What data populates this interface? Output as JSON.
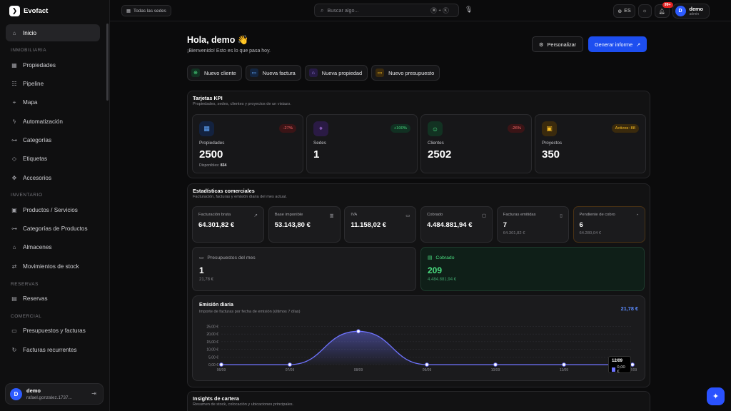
{
  "brand": {
    "name": "Evofact"
  },
  "sidebar": {
    "items": [
      {
        "id": "inicio",
        "label": "Inicio",
        "icon": "home-icon",
        "glyph": "⌂",
        "active": true
      },
      {
        "section": "INMOBILIARIA"
      },
      {
        "id": "propiedades",
        "label": "Propiedades",
        "icon": "building-icon",
        "glyph": "▦"
      },
      {
        "id": "pipeline",
        "label": "Pipeline",
        "icon": "pipeline-icon",
        "glyph": "☷"
      },
      {
        "id": "mapa",
        "label": "Mapa",
        "icon": "map-pin-icon",
        "glyph": "⌖"
      },
      {
        "id": "automatizacion",
        "label": "Automatización",
        "icon": "bolt-icon",
        "glyph": "ϟ"
      },
      {
        "id": "categorias",
        "label": "Categorías",
        "icon": "tree-icon",
        "glyph": "⊶"
      },
      {
        "id": "etiquetas",
        "label": "Etiquetas",
        "icon": "tag-icon",
        "glyph": "◇"
      },
      {
        "id": "accesorios",
        "label": "Accesorios",
        "icon": "puzzle-icon",
        "glyph": "✥"
      },
      {
        "section": "INVENTARIO"
      },
      {
        "id": "productos",
        "label": "Productos / Servicios",
        "icon": "box-icon",
        "glyph": "▣"
      },
      {
        "id": "cat-productos",
        "label": "Categorías de Productos",
        "icon": "tree-icon",
        "glyph": "⊶"
      },
      {
        "id": "almacenes",
        "label": "Almacenes",
        "icon": "warehouse-icon",
        "glyph": "⌂"
      },
      {
        "id": "movimientos",
        "label": "Movimientos de stock",
        "icon": "arrows-icon",
        "glyph": "⇄"
      },
      {
        "section": "RESERVAS"
      },
      {
        "id": "reservas",
        "label": "Reservas",
        "icon": "calendar-icon",
        "glyph": "▤"
      },
      {
        "section": "COMERCIAL"
      },
      {
        "id": "presupuestos",
        "label": "Presupuestos y facturas",
        "icon": "document-icon",
        "glyph": "▭"
      },
      {
        "id": "recurrentes",
        "label": "Facturas recurrentes",
        "icon": "repeat-icon",
        "glyph": "↻"
      }
    ],
    "user": {
      "initial": "D",
      "name": "demo",
      "email": "rafael.gonzalez.1737..."
    }
  },
  "topbar": {
    "site_selector": "Todas las sedes",
    "search_placeholder": "Buscar algo...",
    "shortcut_mod": "⌘",
    "shortcut_plus": "+",
    "shortcut_key": "K",
    "language": "ES",
    "notifications_badge": "99+",
    "user": {
      "initial": "D",
      "name": "demo",
      "role": "admin"
    }
  },
  "header": {
    "greeting": "Hola, demo 👋",
    "subtitle": "¡Bienvenido! Esto es lo que pasa hoy.",
    "customize_label": "Personalizar",
    "report_label": "Generar informe"
  },
  "quick_actions": [
    {
      "label": "Nuevo cliente",
      "icon": "user-plus-icon",
      "color": "#4ade80",
      "bg": "#123222",
      "glyph": "⊕"
    },
    {
      "label": "Nueva factura",
      "icon": "invoice-icon",
      "color": "#60a5fa",
      "bg": "#132540",
      "glyph": "▭"
    },
    {
      "label": "Nueva propiedad",
      "icon": "house-icon",
      "color": "#a78bfa",
      "bg": "#261a44",
      "glyph": "⌂"
    },
    {
      "label": "Nuevo presupuesto",
      "icon": "quote-icon",
      "color": "#fbbf24",
      "bg": "#3a2a0d",
      "glyph": "▭"
    }
  ],
  "kpi_panel": {
    "title": "Tarjetas KPI",
    "subtitle": "Propiedades, sedes, clientes y proyectos de un vistazo.",
    "cards": [
      {
        "label": "Propiedades",
        "value": "2500",
        "pill": "-27%",
        "pill_type": "red",
        "icon": "building-icon",
        "glyph": "▦",
        "color": "#60a5fa",
        "bg": "#13223f",
        "foot_label": "Disponibles:",
        "foot_value": "834"
      },
      {
        "label": "Sedes",
        "value": "1",
        "pill": "+100%",
        "pill_type": "green",
        "icon": "map-pin-icon",
        "glyph": "⌖",
        "color": "#c084fc",
        "bg": "#2a1a44"
      },
      {
        "label": "Clientes",
        "value": "2502",
        "pill": "-26%",
        "pill_type": "red",
        "icon": "users-icon",
        "glyph": "☺",
        "color": "#4ade80",
        "bg": "#123222"
      },
      {
        "label": "Proyectos",
        "value": "350",
        "pill": "Activos: 88",
        "pill_type": "amber",
        "icon": "briefcase-icon",
        "glyph": "▣",
        "color": "#fbbf24",
        "bg": "#3a2a0d"
      }
    ]
  },
  "stats_panel": {
    "title": "Estadísticas comerciales",
    "subtitle": "Facturación, facturas y emisión diaria del mes actual.",
    "stats": [
      {
        "label": "Facturación bruta",
        "value": "64.301,82 €",
        "icon": "trend-icon",
        "glyph": "↗"
      },
      {
        "label": "Base imponible",
        "value": "53.143,80 €",
        "icon": "calculator-icon",
        "glyph": "▥"
      },
      {
        "label": "IVA",
        "value": "11.158,02 €",
        "icon": "receipt-icon",
        "glyph": "▭"
      },
      {
        "label": "Cobrado",
        "value": "4.484.881,94 €",
        "icon": "wallet-icon",
        "glyph": "▢"
      },
      {
        "label": "Facturas emitidas",
        "value": "7",
        "sub": "64.301,82 €",
        "icon": "file-icon",
        "glyph": "▯"
      },
      {
        "label": "Pendiente de cobro",
        "value": "6",
        "sub": "64.280,04 €",
        "icon": "clock-icon",
        "glyph": "◔",
        "warn": true
      }
    ],
    "big": [
      {
        "label": "Presupuestos del mes",
        "value": "1",
        "sub": "21,78 €",
        "icon": "document-icon",
        "glyph": "▭"
      },
      {
        "label": "Cobrado",
        "value": "209",
        "sub": "4.484.881,94 €",
        "icon": "receipt-icon",
        "glyph": "▤",
        "green": true
      }
    ]
  },
  "chart_data": {
    "type": "area",
    "title": "Emisión diaria",
    "subtitle": "Importe de facturas por fecha de emisión (últimos 7 días)",
    "total": "21,78 €",
    "categories": [
      "06/09",
      "07/09",
      "08/09",
      "09/09",
      "10/09",
      "11/09",
      "12/09"
    ],
    "series": [
      {
        "values": [
          0,
          0,
          21.78,
          0,
          0,
          0,
          0
        ]
      }
    ],
    "ytick_labels": [
      "0,00 €",
      "5,00 €",
      "10,00 €",
      "15,00 €",
      "20,00 €",
      "25,00 €"
    ],
    "ylim": [
      0,
      28
    ],
    "color": "#6f74ff",
    "tooltip": {
      "date": "12/09",
      "value": "0,00 €"
    }
  },
  "insights_panel": {
    "title": "Insights de cartera",
    "subtitle": "Resumen de stock, colocación y ubicaciones principales."
  }
}
